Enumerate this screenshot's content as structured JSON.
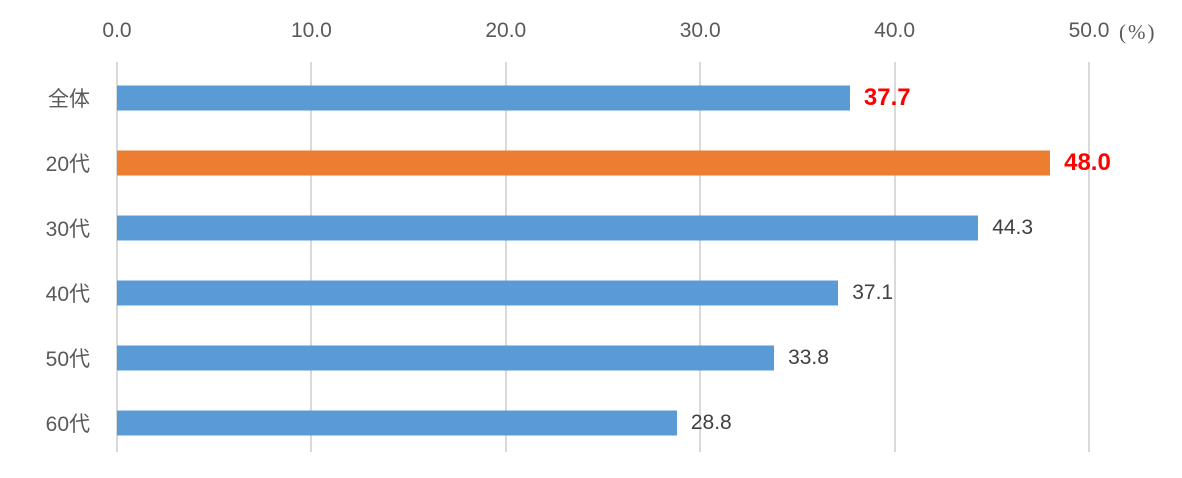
{
  "chart_data": {
    "type": "bar",
    "orientation": "horizontal",
    "title": "",
    "categories": [
      "全体",
      "20代",
      "30代",
      "40代",
      "50代",
      "60代"
    ],
    "values": [
      37.7,
      48.0,
      44.3,
      37.1,
      33.8,
      28.8
    ],
    "value_labels": [
      "37.7",
      "48.0",
      "44.3",
      "37.1",
      "33.8",
      "28.8"
    ],
    "highlighted_category": "20代",
    "emphasized_value_rows": [
      0,
      1
    ],
    "x_ticks": [
      "0.0",
      "10.0",
      "20.0",
      "30.0",
      "40.0",
      "50.0"
    ],
    "x_tick_values": [
      0,
      10,
      20,
      30,
      40,
      50
    ],
    "x_unit": "(%)",
    "xlim": [
      0,
      50
    ],
    "grid": "vertical-only",
    "legend": "none",
    "colors": {
      "bar": "#5b9bd5",
      "bar_highlight": "#ed7d31",
      "value_text": "#404040",
      "value_text_emphasis": "#ff0000",
      "axis_text": "#595959",
      "gridline": "#d9d9d9",
      "background": "#ffffff"
    }
  }
}
